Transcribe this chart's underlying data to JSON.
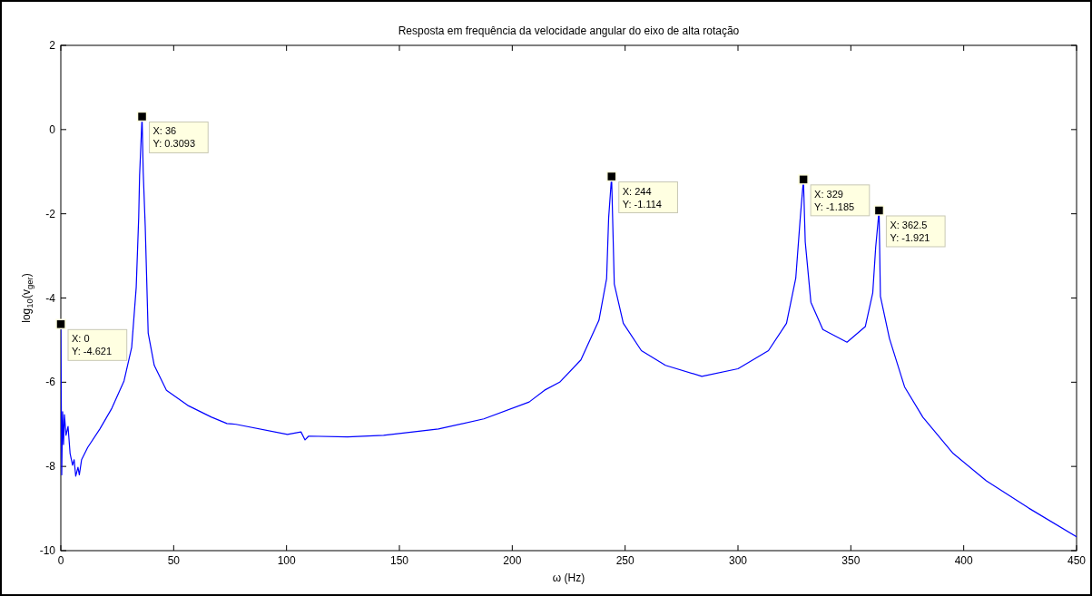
{
  "chart_data": {
    "type": "line",
    "title": "Resposta em frequência da velocidade angular do eixo de alta rotação",
    "xlabel": "ω (Hz)",
    "ylabel": "log$_{10}$(v$_{ger}$)",
    "xlim": [
      0,
      450
    ],
    "xticks": [
      0,
      50,
      100,
      150,
      200,
      250,
      300,
      350,
      400,
      450
    ],
    "ylim": [
      -10,
      2
    ],
    "yticks": [
      -10,
      -8,
      -6,
      -4,
      -2,
      0,
      2
    ],
    "grid": false,
    "marker": "none",
    "line_style": "solid",
    "series": [
      {
        "color": "#0000ff",
        "x": [
          0,
          0.4,
          0.8,
          1.2,
          1.6,
          2.3,
          3.2,
          4.1,
          5.2,
          5.9,
          6.6,
          7.6,
          8.2,
          9.2,
          11.9,
          17.3,
          22.6,
          28,
          31.4,
          33.4,
          34.5,
          34.9,
          36,
          36.5,
          37.4,
          38.7,
          41.4,
          46.8,
          56.2,
          66.8,
          73.6,
          77.6,
          100.4,
          106.4,
          108.2,
          109.8,
          127,
          143,
          167.3,
          187.4,
          207.5,
          214.3,
          221,
          230.4,
          238.4,
          241.8,
          242.7,
          244,
          245.2,
          249.2,
          257.2,
          267.9,
          284,
          300,
          313.5,
          321.5,
          325.6,
          327.6,
          329,
          329.8,
          332.3,
          337.6,
          348.3,
          356.4,
          359.7,
          361,
          362.5,
          363.1,
          367.1,
          373.8,
          381.9,
          395.3,
          410,
          428.8,
          450
        ],
        "values": [
          -4.621,
          -8.2,
          -6.7,
          -7.48,
          -6.77,
          -7.26,
          -7.05,
          -7.69,
          -7.97,
          -7.84,
          -8.23,
          -8.02,
          -8.2,
          -7.84,
          -7.55,
          -7.11,
          -6.62,
          -5.97,
          -5.17,
          -3.75,
          -2.09,
          -1.08,
          0.3093,
          -1.0,
          -2.3,
          -4.83,
          -5.6,
          -6.19,
          -6.55,
          -6.83,
          -6.98,
          -7.0,
          -7.24,
          -7.18,
          -7.37,
          -7.28,
          -7.3,
          -7.26,
          -7.11,
          -6.87,
          -6.47,
          -6.19,
          -6.0,
          -5.47,
          -4.53,
          -3.54,
          -2.1,
          -1.114,
          -3.67,
          -4.6,
          -5.25,
          -5.6,
          -5.86,
          -5.68,
          -5.25,
          -4.6,
          -3.53,
          -2.09,
          -1.185,
          -2.67,
          -4.1,
          -4.75,
          -5.05,
          -4.68,
          -3.88,
          -2.8,
          -1.921,
          -3.96,
          -4.96,
          -6.11,
          -6.83,
          -7.69,
          -8.34,
          -8.99,
          -9.67
        ]
      }
    ],
    "annotations": [
      {
        "text": "X: 0\nY: -4.621",
        "x": 0,
        "y": -4.621
      },
      {
        "text": "X: 36\nY: 0.3093",
        "x": 36,
        "y": 0.3093
      },
      {
        "text": "X: 244\nY: -1.114",
        "x": 244,
        "y": -1.114
      },
      {
        "text": "X: 329\nY: -1.185",
        "x": 329,
        "y": -1.185
      },
      {
        "text": "X: 362.5\nY: -1.921",
        "x": 362.5,
        "y": -1.921
      }
    ]
  }
}
